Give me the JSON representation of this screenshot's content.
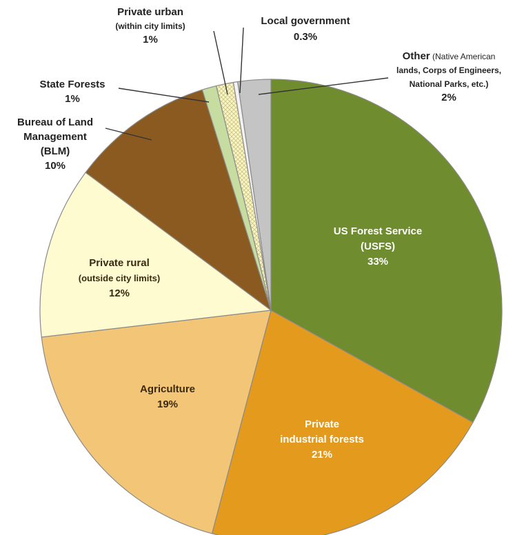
{
  "chart_data": {
    "type": "pie",
    "start_angle_deg": 0,
    "direction": "clockwise",
    "slices": [
      {
        "key": "usfs",
        "label_lines": [
          "US Forest Service",
          "(USFS)"
        ],
        "pct_label": "33%",
        "value": 33,
        "color": "#6f8c2e"
      },
      {
        "key": "industrial",
        "label_lines": [
          "Private",
          "industrial forests"
        ],
        "pct_label": "21%",
        "value": 21,
        "color": "#e39a1d"
      },
      {
        "key": "agriculture",
        "label_lines": [
          "Agriculture"
        ],
        "pct_label": "19%",
        "value": 19,
        "color": "#f3c577"
      },
      {
        "key": "rural",
        "label_lines": [
          "Private rural",
          "(outside city limits)"
        ],
        "pct_label": "12%",
        "value": 12,
        "color": "#fffbd1"
      },
      {
        "key": "blm",
        "label_lines": [
          "Bureau of Land",
          "Management",
          "(BLM)"
        ],
        "pct_label": "10%",
        "value": 10,
        "color": "#8b5a20"
      },
      {
        "key": "state",
        "label_lines": [
          "State Forests"
        ],
        "pct_label": "1%",
        "value": 1,
        "color": "#c6dca0"
      },
      {
        "key": "urban",
        "label_lines": [
          "Private urban",
          "(within city limits)"
        ],
        "pct_label": "1%",
        "value": 1.2,
        "color": "#fbf6c2",
        "pattern": "crosshatch"
      },
      {
        "key": "local",
        "label_lines": [
          "Local government"
        ],
        "pct_label": "0.3%",
        "value": 0.3,
        "color": "#f2f2f2"
      },
      {
        "key": "other",
        "label_lines": [
          "Other",
          "lands, Corps of Engineers,",
          "National Parks, etc.)"
        ],
        "label_suffix": "(Native American",
        "pct_label": "2%",
        "value": 2.3,
        "color": "#c4c4c4"
      }
    ]
  }
}
